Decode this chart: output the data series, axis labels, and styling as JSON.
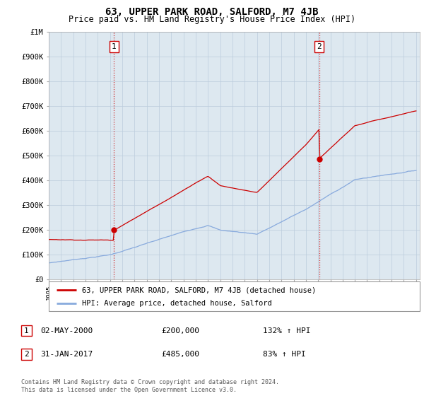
{
  "title": "63, UPPER PARK ROAD, SALFORD, M7 4JB",
  "subtitle": "Price paid vs. HM Land Registry's House Price Index (HPI)",
  "ylim": [
    0,
    1000000
  ],
  "yticks": [
    0,
    100000,
    200000,
    300000,
    400000,
    500000,
    600000,
    700000,
    800000,
    900000,
    1000000
  ],
  "ytick_labels": [
    "£0",
    "£100K",
    "£200K",
    "£300K",
    "£400K",
    "£500K",
    "£600K",
    "£700K",
    "£800K",
    "£900K",
    "£1M"
  ],
  "red_line_color": "#cc0000",
  "blue_line_color": "#88aadd",
  "plot_bg_color": "#dde8f0",
  "annotation1_label": "1",
  "annotation1_date": "02-MAY-2000",
  "annotation1_price": 200000,
  "annotation2_label": "2",
  "annotation2_date": "31-JAN-2017",
  "annotation2_price": 485000,
  "legend_line1": "63, UPPER PARK ROAD, SALFORD, M7 4JB (detached house)",
  "legend_line2": "HPI: Average price, detached house, Salford",
  "ann1_col1": "02-MAY-2000",
  "ann1_col2": "£200,000",
  "ann1_col3": "132% ↑ HPI",
  "ann2_col1": "31-JAN-2017",
  "ann2_col2": "£485,000",
  "ann2_col3": "83% ↑ HPI",
  "footer": "Contains HM Land Registry data © Crown copyright and database right 2024.\nThis data is licensed under the Open Government Licence v3.0.",
  "background_color": "#ffffff",
  "grid_color": "#bbccdd",
  "title_fontsize": 10,
  "subtitle_fontsize": 8.5,
  "tick_fontsize": 7.5,
  "sale1_year": 2000.33,
  "sale2_year": 2017.08
}
